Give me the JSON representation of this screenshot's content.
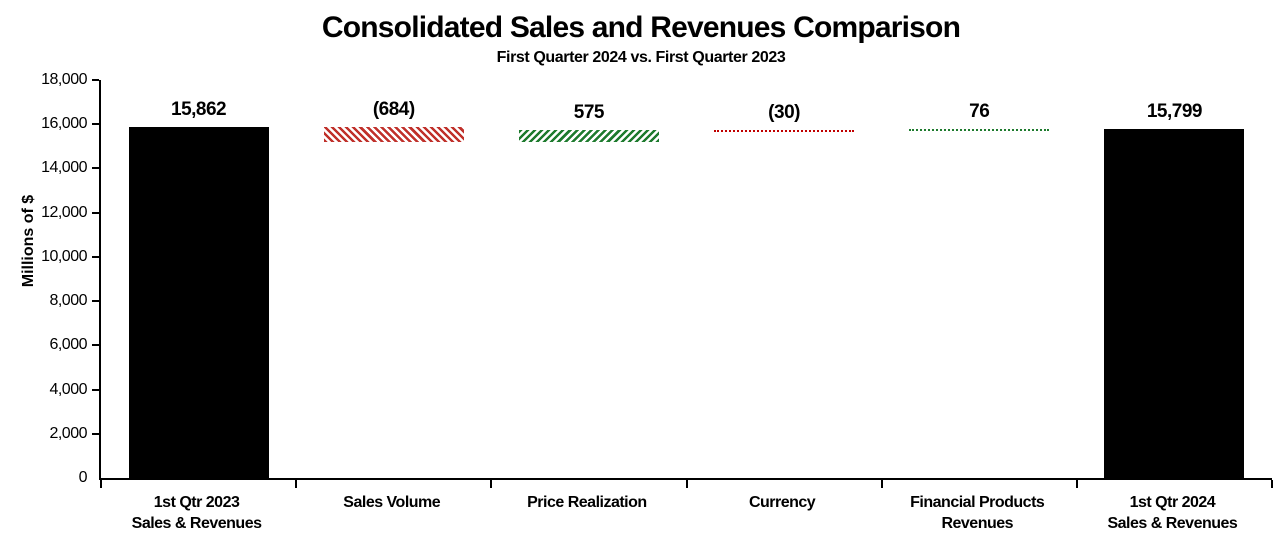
{
  "chart_data": {
    "type": "bar",
    "subtype": "waterfall",
    "title": "Consolidated Sales and Revenues Comparison",
    "subtitle": "First Quarter 2024 vs. First Quarter 2023",
    "ylabel": "Millions of $",
    "xlabel": "",
    "ylim": [
      0,
      18000
    ],
    "ytick_step": 2000,
    "ytick_labels": [
      "0",
      "2,000",
      "4,000",
      "6,000",
      "8,000",
      "10,000",
      "12,000",
      "14,000",
      "16,000",
      "18,000"
    ],
    "grid": "off",
    "legend": "none",
    "categories": [
      "1st Qtr 2023\nSales & Revenues",
      "Sales Volume",
      "Price Realization",
      "Currency",
      "Financial Products\nRevenues",
      "1st Qtr 2024\nSales & Revenues"
    ],
    "bars": [
      {
        "slug": "1st-qtr-2023-sales-and-revenues",
        "label": "15,862",
        "value": 15862,
        "start": 0,
        "end": 15862,
        "style": "solid"
      },
      {
        "slug": "sales-volume",
        "label": "(684)",
        "value": -684,
        "start": 15178,
        "end": 15862,
        "style": "hatch-red"
      },
      {
        "slug": "price-realization",
        "label": "575",
        "value": 575,
        "start": 15178,
        "end": 15753,
        "style": "hatch-green"
      },
      {
        "slug": "currency",
        "label": "(30)",
        "value": -30,
        "start": 15723,
        "end": 15753,
        "style": "dotted-red"
      },
      {
        "slug": "financial-products-revenues",
        "label": "76",
        "value": 76,
        "start": 15723,
        "end": 15799,
        "style": "dotted-green"
      },
      {
        "slug": "1st-qtr-2024-sales-and-revenues",
        "label": "15,799",
        "value": 15799,
        "start": 0,
        "end": 15799,
        "style": "solid"
      }
    ],
    "colors": {
      "solid_bar": "#000000",
      "negative_hatch": "#c0312b",
      "positive_hatch": "#1e7b2e",
      "negative_dotted": "#c00000",
      "positive_dotted": "#1e7b2e",
      "axis": "#000000",
      "background": "#ffffff"
    }
  }
}
